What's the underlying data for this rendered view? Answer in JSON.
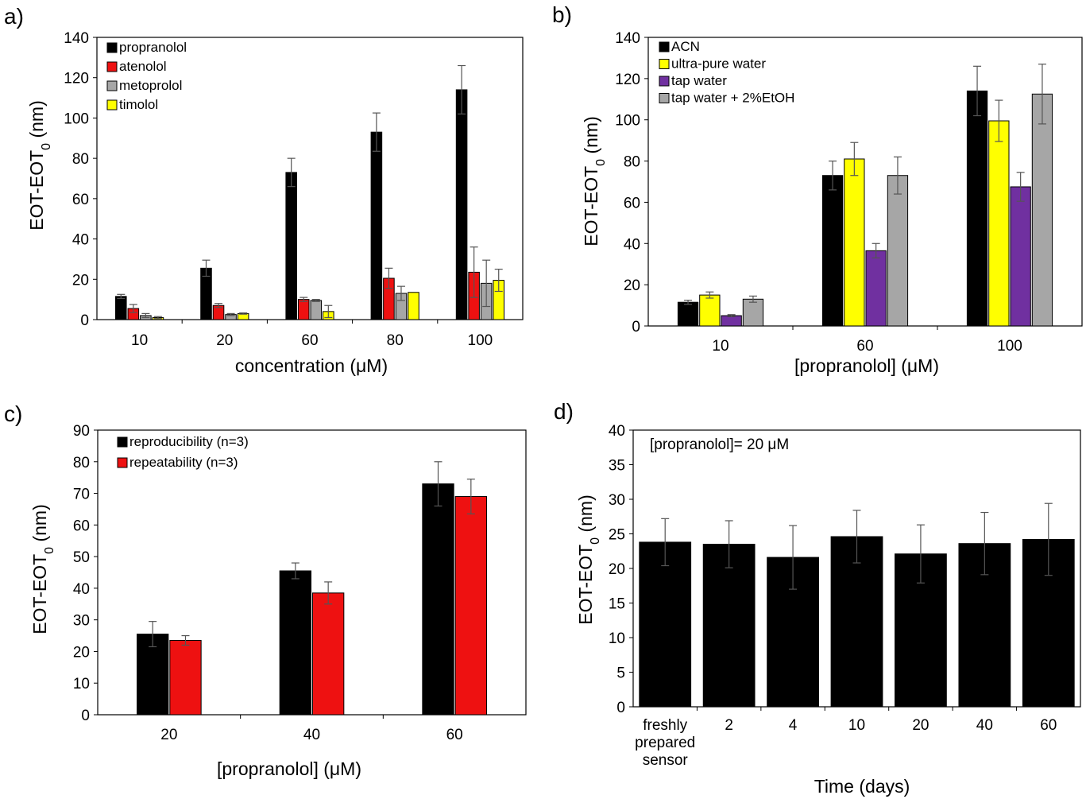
{
  "figure": {
    "panel_labels": [
      "a)",
      "b)",
      "c)",
      "d)"
    ]
  },
  "chart_data": [
    {
      "panel": "a)",
      "type": "bar",
      "title": "",
      "categories": [
        "10",
        "20",
        "60",
        "80",
        "100"
      ],
      "series": [
        {
          "name": "propranolol",
          "color": "#000000",
          "values": [
            11.5,
            25.5,
            73,
            93,
            114
          ],
          "errors": [
            1,
            4,
            7,
            9.5,
            12
          ]
        },
        {
          "name": "atenolol",
          "color": "#ee1111",
          "values": [
            5.5,
            7,
            10,
            20.5,
            23.5
          ],
          "errors": [
            2,
            1,
            1,
            5,
            12.5
          ]
        },
        {
          "name": "metoprolol",
          "color": "#a6a6a6",
          "values": [
            2,
            2.5,
            9.5,
            13,
            18
          ],
          "errors": [
            1,
            0.5,
            0.5,
            3.5,
            11.5
          ]
        },
        {
          "name": "timolol",
          "color": "#ffff00",
          "values": [
            1,
            3,
            4,
            13.5,
            19.5
          ],
          "errors": [
            0.5,
            0.3,
            3,
            0,
            5.5
          ]
        }
      ],
      "xlabel": "concentration (μM)",
      "ylabel": "EOT-EOT0 (nm)",
      "ylim": [
        0,
        140
      ],
      "yticks": [
        "0",
        "20",
        "40",
        "60",
        "80",
        "100",
        "120",
        "140"
      ],
      "legend_position": "top-left",
      "grid": false
    },
    {
      "panel": "b)",
      "type": "bar",
      "title": "",
      "categories": [
        "10",
        "60",
        "100"
      ],
      "series": [
        {
          "name": "ACN",
          "color": "#000000",
          "values": [
            11.5,
            73,
            114
          ],
          "errors": [
            1,
            7,
            12
          ]
        },
        {
          "name": "ultra-pure water",
          "color": "#ffff00",
          "values": [
            15,
            81,
            99.5
          ],
          "errors": [
            1.5,
            8,
            10
          ]
        },
        {
          "name": "tap water",
          "color": "#7030a0",
          "values": [
            5,
            36.5,
            67.5
          ],
          "errors": [
            0.5,
            3.5,
            7
          ]
        },
        {
          "name": "tap water + 2%EtOH",
          "color": "#a6a6a6",
          "values": [
            13,
            73,
            112.5
          ],
          "errors": [
            1.5,
            9,
            14.5
          ]
        }
      ],
      "xlabel": "[propranolol] (μM)",
      "ylabel": "EOT-EOT0 (nm)",
      "ylim": [
        0,
        140
      ],
      "yticks": [
        "0",
        "20",
        "40",
        "60",
        "80",
        "100",
        "120",
        "140"
      ],
      "legend_position": "top-left",
      "grid": false
    },
    {
      "panel": "c)",
      "type": "bar",
      "title": "",
      "categories": [
        "20",
        "40",
        "60"
      ],
      "series": [
        {
          "name": "reproducibility (n=3)",
          "color": "#000000",
          "values": [
            25.5,
            45.5,
            73
          ],
          "errors": [
            4,
            2.5,
            7
          ]
        },
        {
          "name": "repeatability (n=3)",
          "color": "#ee1111",
          "values": [
            23.5,
            38.5,
            69
          ],
          "errors": [
            1.5,
            3.5,
            5.5
          ]
        }
      ],
      "xlabel": "[propranolol] (μM)",
      "ylabel": "EOT-EOT0 (nm)",
      "ylim": [
        0,
        90
      ],
      "yticks": [
        "0",
        "10",
        "20",
        "30",
        "40",
        "50",
        "60",
        "70",
        "80",
        "90"
      ],
      "legend_position": "top-left",
      "grid": false
    },
    {
      "panel": "d)",
      "type": "bar",
      "title": "",
      "annotation": "[propranolol]= 20 μM",
      "categories": [
        "freshly prepared sensor",
        "2",
        "4",
        "10",
        "20",
        "40",
        "60"
      ],
      "category_lines": [
        [
          "freshly",
          "prepared",
          "sensor"
        ],
        [
          "2"
        ],
        [
          "4"
        ],
        [
          "10"
        ],
        [
          "20"
        ],
        [
          "40"
        ],
        [
          "60"
        ]
      ],
      "series": [
        {
          "name": "",
          "color": "#000000",
          "values": [
            23.8,
            23.5,
            21.6,
            24.6,
            22.1,
            23.6,
            24.2
          ],
          "errors": [
            3.4,
            3.4,
            4.6,
            3.8,
            4.2,
            4.5,
            5.2
          ]
        }
      ],
      "xlabel": "Time (days)",
      "ylabel": "EOT-EOT0 (nm)",
      "ylim": [
        0,
        40
      ],
      "yticks": [
        "0",
        "5",
        "10",
        "15",
        "20",
        "25",
        "30",
        "35",
        "40"
      ],
      "legend_position": "none",
      "grid": false
    }
  ]
}
